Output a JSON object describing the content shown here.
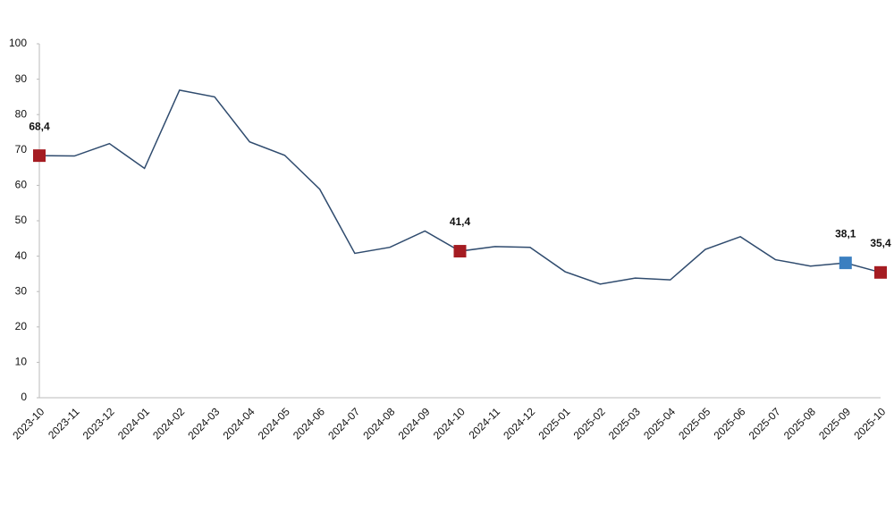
{
  "chart_data": {
    "type": "line",
    "categories": [
      "2023-10",
      "2023-11",
      "2023-12",
      "2024-01",
      "2024-02",
      "2024-03",
      "2024-04",
      "2024-05",
      "2024-06",
      "2024-07",
      "2024-08",
      "2024-09",
      "2024-10",
      "2024-11",
      "2024-12",
      "2025-01",
      "2025-02",
      "2025-03",
      "2025-04",
      "2025-05",
      "2025-06",
      "2025-07",
      "2025-08",
      "2025-09",
      "2025-10"
    ],
    "values": [
      68.4,
      68.3,
      71.8,
      64.8,
      86.9,
      85.0,
      72.3,
      68.5,
      58.9,
      40.8,
      42.5,
      47.1,
      41.4,
      42.7,
      42.5,
      35.6,
      32.1,
      33.8,
      33.3,
      41.9,
      45.5,
      39.0,
      37.2,
      38.1,
      35.4
    ],
    "value_labels": [
      "68,4",
      null,
      null,
      null,
      null,
      null,
      null,
      null,
      null,
      null,
      null,
      null,
      "41,4",
      null,
      null,
      null,
      null,
      null,
      null,
      null,
      null,
      null,
      null,
      "38,1",
      "35,4"
    ],
    "marker_colors": [
      "#a51c22",
      null,
      null,
      null,
      null,
      null,
      null,
      null,
      null,
      null,
      null,
      null,
      "#a51c22",
      null,
      null,
      null,
      null,
      null,
      null,
      null,
      null,
      null,
      null,
      "#3b7fc0",
      "#a51c22"
    ],
    "color": "#2f4b6e",
    "ylim": [
      0,
      100
    ],
    "yticks": [
      0,
      10,
      20,
      30,
      40,
      50,
      60,
      70,
      80,
      90,
      100
    ],
    "grid": false
  }
}
